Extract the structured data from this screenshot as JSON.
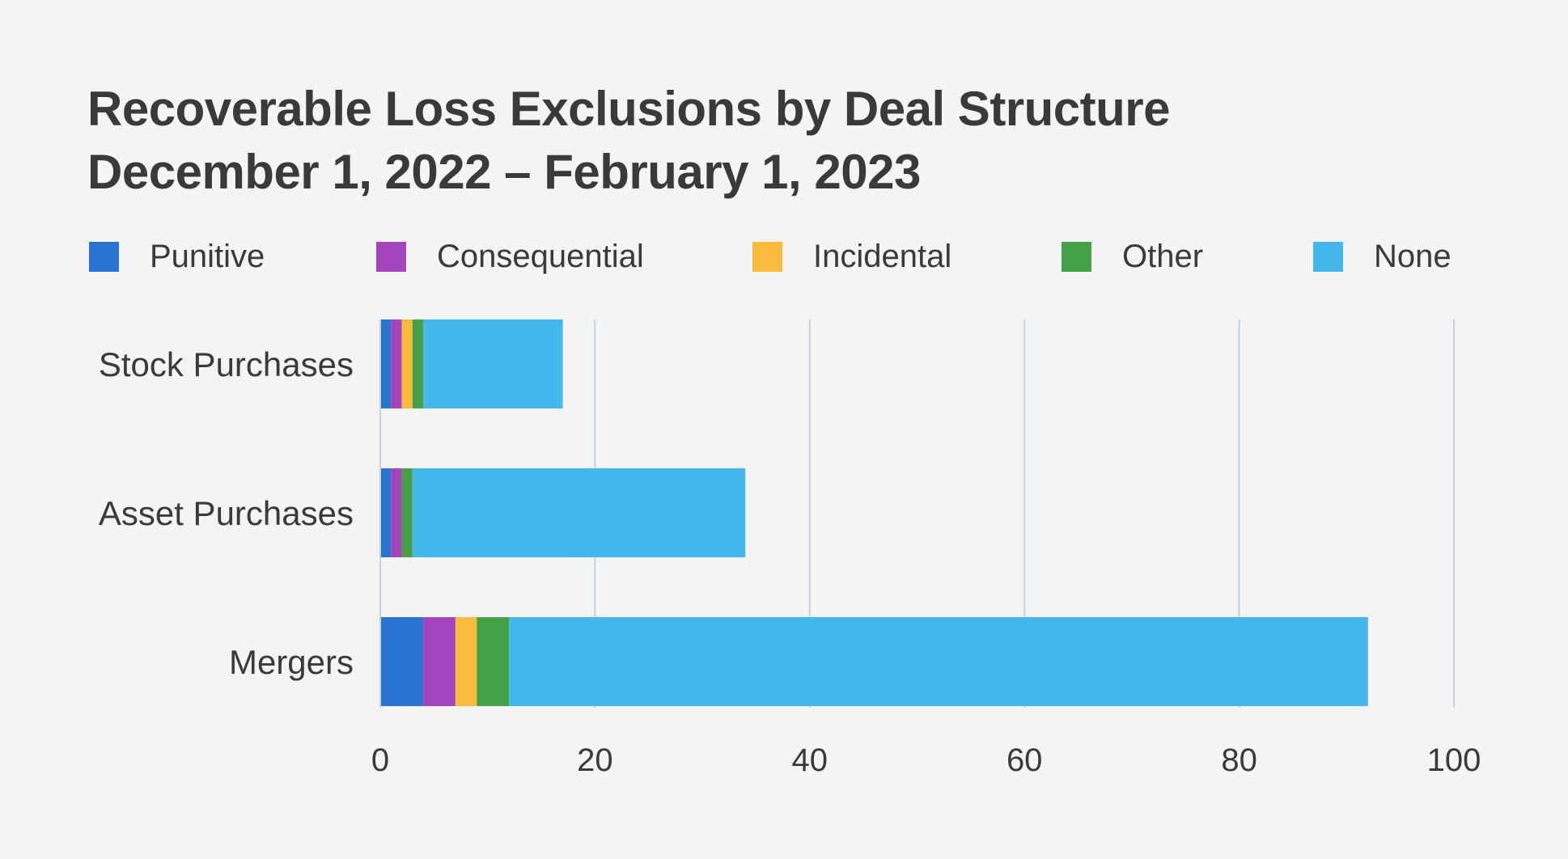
{
  "chart_data": {
    "type": "bar",
    "orientation": "horizontal",
    "stacked": true,
    "title": "Recoverable Loss Exclusions by Deal Structure",
    "subtitle": "December 1, 2022 – February 1, 2023",
    "categories": [
      "Stock Purchases",
      "Asset Purchases",
      "Mergers"
    ],
    "series": [
      {
        "name": "Punitive",
        "color": "#2a74d4",
        "values": [
          1,
          1,
          4
        ]
      },
      {
        "name": "Consequential",
        "color": "#a545bd",
        "values": [
          1,
          1,
          3
        ]
      },
      {
        "name": "Incidental",
        "color": "#f9bb3c",
        "values": [
          1,
          0,
          2
        ]
      },
      {
        "name": "Other",
        "color": "#45a04a",
        "values": [
          1,
          1,
          3
        ]
      },
      {
        "name": "None",
        "color": "#44b8ec",
        "values": [
          13,
          31,
          80
        ]
      }
    ],
    "xlim": [
      0,
      100
    ],
    "x_ticks": [
      0,
      20,
      40,
      60,
      80,
      100
    ],
    "xlabel": "",
    "ylabel": "",
    "grid": "vertical",
    "legend_position": "top"
  },
  "colors": {
    "background": "#f4f4f4",
    "gridline": "#c9d1db",
    "text": "#3a3a3a"
  }
}
